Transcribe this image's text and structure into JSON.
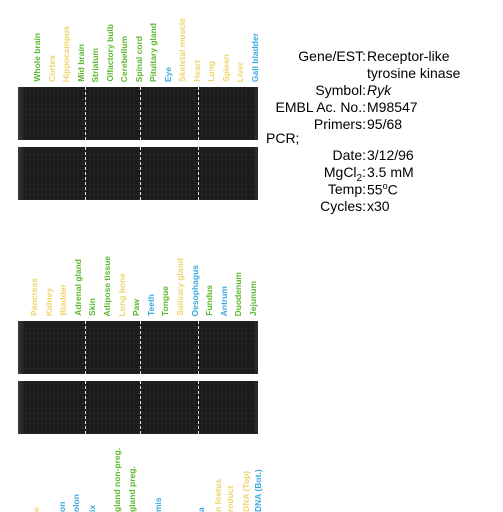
{
  "colors": {
    "green": "#5cb82e",
    "yellow": "#efd46a",
    "blue": "#39a9e0",
    "gel_background": "#1b1b1b"
  },
  "panel1": {
    "lanes": [
      {
        "label": "Whole brain",
        "color": "green"
      },
      {
        "label": "Cortex",
        "color": "yellow"
      },
      {
        "label": "Hippocampus",
        "color": "yellow"
      },
      {
        "label": "Mid brain",
        "color": "green"
      },
      {
        "label": "Striatum",
        "color": "green"
      },
      {
        "label": "Olfactory bulb",
        "color": "green"
      },
      {
        "label": "Cerebellum",
        "color": "green"
      },
      {
        "label": "Spinal cord",
        "color": "green"
      },
      {
        "label": "Pituitary gland",
        "color": "green"
      },
      {
        "label": "Eye",
        "color": "blue"
      },
      {
        "label": "Skeletal muscle",
        "color": "yellow"
      },
      {
        "label": "Heart",
        "color": "yellow"
      },
      {
        "label": "Lung",
        "color": "yellow"
      },
      {
        "label": "Spleen",
        "color": "yellow"
      },
      {
        "label": "Liver",
        "color": "yellow"
      },
      {
        "label": "Gall bladder",
        "color": "blue"
      }
    ]
  },
  "panel2": {
    "lanes": [
      {
        "label": "Pancreas",
        "color": "yellow"
      },
      {
        "label": "Kidney",
        "color": "yellow"
      },
      {
        "label": "Bladder",
        "color": "yellow"
      },
      {
        "label": "Adrenal gland",
        "color": "green"
      },
      {
        "label": "Skin",
        "color": "green"
      },
      {
        "label": "Adipose tissue",
        "color": "green"
      },
      {
        "label": "Long bone",
        "color": "yellow"
      },
      {
        "label": "Paw",
        "color": "green"
      },
      {
        "label": "Teeth",
        "color": "blue"
      },
      {
        "label": "Tongue",
        "color": "green"
      },
      {
        "label": "Salivary gland",
        "color": "yellow"
      },
      {
        "label": "Oesophagus",
        "color": "blue"
      },
      {
        "label": "Fundus",
        "color": "green"
      },
      {
        "label": "Antrum",
        "color": "blue"
      },
      {
        "label": "Duodenum",
        "color": "green"
      },
      {
        "label": "Jejunum",
        "color": "green"
      }
    ]
  },
  "panel3_partial": {
    "lanes": [
      {
        "label": "e",
        "color": "yellow"
      },
      {
        "label": "on",
        "color": "blue"
      },
      {
        "label": "olon",
        "color": "blue"
      },
      {
        "label": "ix",
        "color": "blue"
      },
      {
        "label": "gland non-preg.",
        "color": "green"
      },
      {
        "label": "gland preg.",
        "color": "green"
      },
      {
        "label": "mis",
        "color": "blue"
      },
      {
        "label": "a",
        "color": "blue"
      },
      {
        "label": "n foetus",
        "color": "yellow"
      },
      {
        "label": "roduct",
        "color": "yellow"
      },
      {
        "label": "DNA (Top)",
        "color": "yellow"
      },
      {
        "label": "DNA (Bot.)",
        "color": "blue"
      }
    ]
  },
  "info": {
    "gene_key": "Gene/EST:",
    "gene_value_line1": "Receptor-like",
    "gene_value_line2": "tyrosine kinase",
    "symbol_key": "Symbol:",
    "symbol_value": "Ryk",
    "embl_key": "EMBL Ac. No.:",
    "embl_value": "M98547",
    "primers_key": "Primers:",
    "primers_value": "95/68",
    "pcr_heading": "PCR;",
    "date_key": "Date:",
    "date_value": "3/12/96",
    "mgcl_key_main": "MgCl",
    "mgcl_key_sub": "2",
    "mgcl_key_colon": ":",
    "mgcl_value": "3.5 mM",
    "temp_key": "Temp:",
    "temp_value_num": "55",
    "temp_value_sup": "o",
    "temp_value_unit": "C",
    "cycles_key": "Cycles:",
    "cycles_value": "x30"
  }
}
